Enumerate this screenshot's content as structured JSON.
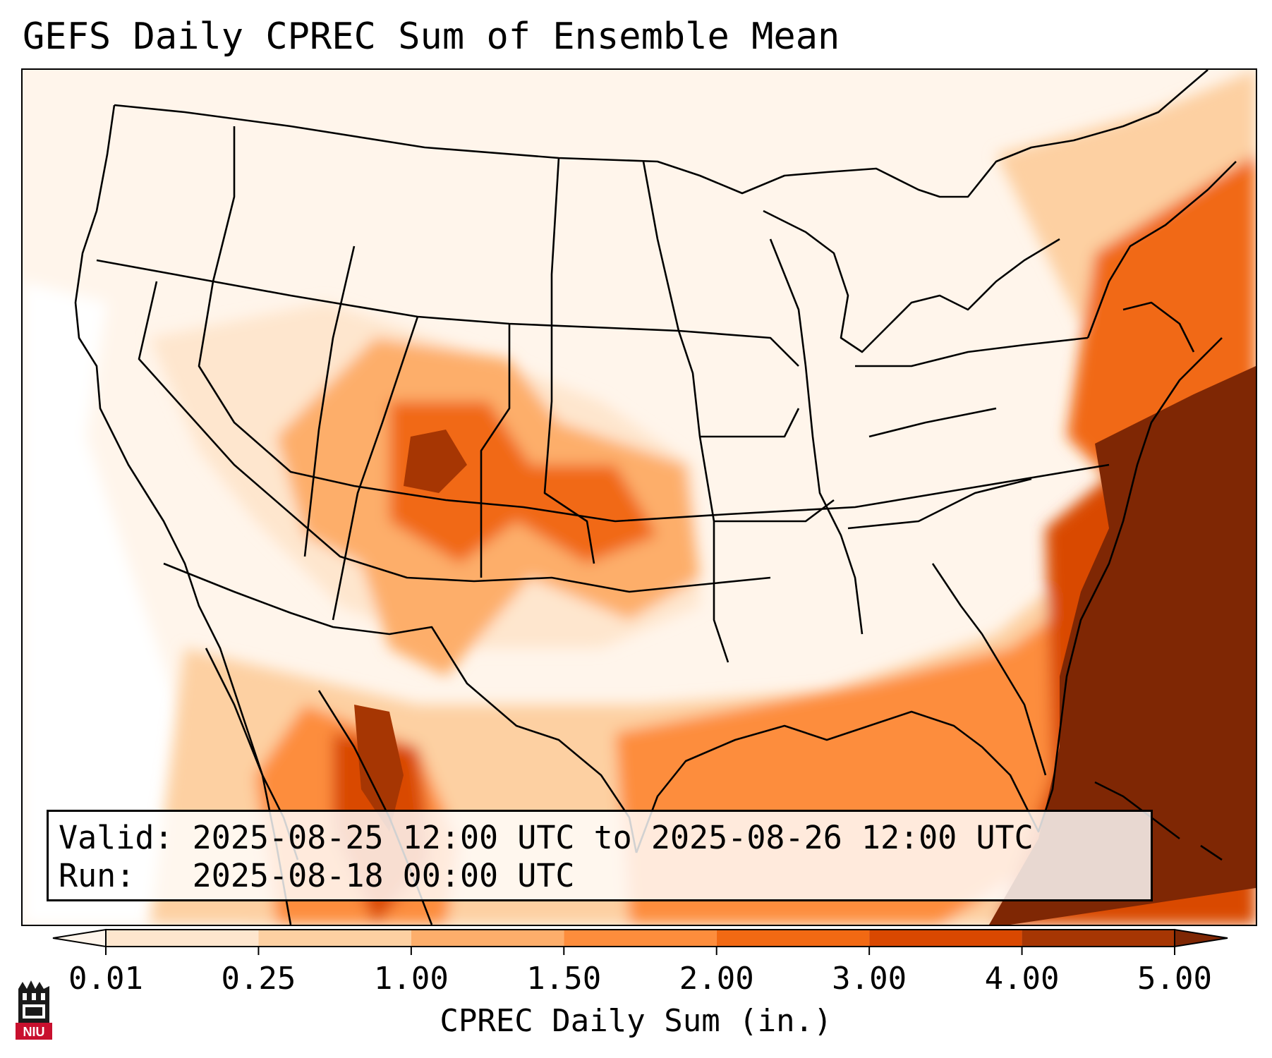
{
  "title": "GEFS Daily CPREC Sum of Ensemble Mean",
  "info_box": {
    "valid_label": "Valid:",
    "valid_value": "2025-08-25 12:00 UTC to 2025-08-26 12:00 UTC",
    "run_label": "Run:",
    "run_value": "2025-08-18 00:00 UTC"
  },
  "colorbar": {
    "label": "CPREC Daily Sum (in.)",
    "ticks": [
      "0.01",
      "0.25",
      "1.00",
      "1.50",
      "2.00",
      "3.00",
      "4.00",
      "5.00"
    ],
    "colors": [
      "#fff5eb",
      "#fee6ce",
      "#fdd0a2",
      "#fdae6b",
      "#fd8d3c",
      "#f16913",
      "#d94801",
      "#a63603",
      "#7f2704"
    ]
  },
  "logo": {
    "text": "NIU",
    "icon": "niu-building-logo-icon"
  },
  "map": {
    "projection": "Lambert conformal (CONUS)",
    "variable": "CPREC",
    "features": [
      "state-borders",
      "country-borders",
      "coastlines"
    ]
  }
}
